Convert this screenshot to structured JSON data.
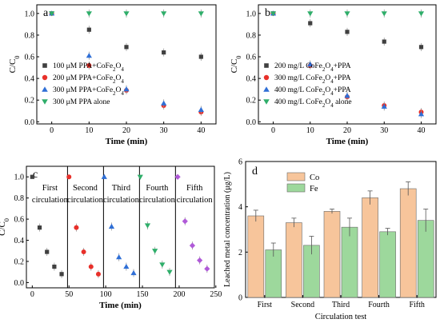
{
  "chart_data": [
    {
      "panel": "a",
      "type": "scatter",
      "xlabel": "Time (min)",
      "ylabel": "C/C0",
      "xlim": [
        -4,
        44
      ],
      "ylim": [
        -0.02,
        1.08
      ],
      "xticks": [
        0,
        10,
        20,
        30,
        40
      ],
      "yticks": [
        0.0,
        0.2,
        0.4,
        0.6,
        0.8,
        1.0
      ],
      "legend_position": "bottom-left",
      "series": [
        {
          "name": "100 μM PPA+CoFe2O4",
          "label": [
            "100 μM PPA+CoFe",
            "2",
            "O",
            "4",
            ""
          ],
          "marker": "square",
          "color": "#404040",
          "x": [
            0,
            10,
            20,
            30,
            40
          ],
          "y": [
            1.0,
            0.85,
            0.69,
            0.64,
            0.6
          ]
        },
        {
          "name": "200 μM PPA+CoFe2O4",
          "label": [
            "200 μM PPA+CoFe",
            "2",
            "O",
            "4",
            ""
          ],
          "marker": "circle",
          "color": "#e8302a",
          "x": [
            0,
            10,
            20,
            30,
            40
          ],
          "y": [
            1.0,
            0.52,
            0.29,
            0.15,
            0.09
          ]
        },
        {
          "name": "300 μM PPA+CoFe2O4",
          "label": [
            "300 μM PPA+CoFe",
            "2",
            "O",
            "4",
            ""
          ],
          "marker": "triangle-up",
          "color": "#2f6fd6",
          "x": [
            0,
            10,
            20,
            30,
            40
          ],
          "y": [
            1.0,
            0.61,
            0.3,
            0.17,
            0.11
          ]
        },
        {
          "name": "300 μM PPA alone",
          "label": [
            "300 μM PPA alone",
            "",
            "",
            "",
            ""
          ],
          "marker": "triangle-down",
          "color": "#2fae6a",
          "x": [
            0,
            10,
            20,
            30,
            40
          ],
          "y": [
            1.0,
            1.0,
            1.0,
            1.0,
            1.0
          ]
        }
      ]
    },
    {
      "panel": "b",
      "type": "scatter",
      "xlabel": "Time (min)",
      "ylabel": "C/C0",
      "xlim": [
        -4,
        44
      ],
      "ylim": [
        -0.02,
        1.08
      ],
      "xticks": [
        0,
        10,
        20,
        30,
        40
      ],
      "yticks": [
        0.0,
        0.2,
        0.4,
        0.6,
        0.8,
        1.0
      ],
      "legend_position": "bottom-left",
      "series": [
        {
          "name": "200 mg/L CoFe2O4+PPA",
          "label": [
            "200 mg/L CoFe",
            "2",
            "O",
            "4",
            "+PPA"
          ],
          "marker": "square",
          "color": "#404040",
          "x": [
            0,
            10,
            20,
            30,
            40
          ],
          "y": [
            1.0,
            0.91,
            0.83,
            0.74,
            0.69
          ]
        },
        {
          "name": "300 mg/L CoFe2O4+PPA",
          "label": [
            "300 mg/L CoFe",
            "2",
            "O",
            "4",
            "+PPA"
          ],
          "marker": "circle",
          "color": "#e8302a",
          "x": [
            0,
            10,
            20,
            30,
            40
          ],
          "y": [
            1.0,
            0.52,
            0.23,
            0.15,
            0.09
          ]
        },
        {
          "name": "400 mg/L CoFe2O4+PPA",
          "label": [
            "400 mg/L CoFe",
            "2",
            "O",
            "4",
            "+PPA"
          ],
          "marker": "triangle-up",
          "color": "#2f6fd6",
          "x": [
            0,
            10,
            20,
            30,
            40
          ],
          "y": [
            1.0,
            0.53,
            0.24,
            0.14,
            0.07
          ]
        },
        {
          "name": "400 mg/L CoFe2O4 alone",
          "label": [
            "400 mg/L CoFe",
            "2",
            "O",
            "4",
            " alone"
          ],
          "marker": "triangle-down",
          "color": "#2fae6a",
          "x": [
            0,
            10,
            20,
            30,
            40
          ],
          "y": [
            1.0,
            1.0,
            1.0,
            1.0,
            1.0
          ]
        }
      ]
    },
    {
      "panel": "c",
      "type": "scatter",
      "xlabel": "Time (min)",
      "ylabel": "C/C0",
      "xlim": [
        -8,
        248
      ],
      "ylim": [
        -0.05,
        1.1
      ],
      "xticks": [
        0,
        50,
        100,
        150,
        200,
        250
      ],
      "yticks": [
        0.0,
        0.2,
        0.4,
        0.6,
        0.8,
        1.0
      ],
      "dividers_x": [
        48,
        97,
        146,
        195
      ],
      "section_labels": [
        {
          "text": "First circulation",
          "x": 24
        },
        {
          "text": "Second circulation",
          "x": 72
        },
        {
          "text": "Third circulation",
          "x": 121
        },
        {
          "text": "Fourth circulation",
          "x": 170
        },
        {
          "text": "Fifth circulation",
          "x": 221
        }
      ],
      "series": [
        {
          "name": "First",
          "marker": "square",
          "color": "#404040",
          "x": [
            0,
            10,
            20,
            30,
            40
          ],
          "y": [
            1.0,
            0.52,
            0.29,
            0.15,
            0.08
          ]
        },
        {
          "name": "Second",
          "marker": "circle",
          "color": "#e8302a",
          "x": [
            50,
            60,
            70,
            80,
            90
          ],
          "y": [
            1.0,
            0.52,
            0.29,
            0.15,
            0.08
          ]
        },
        {
          "name": "Third",
          "marker": "triangle-up",
          "color": "#2f6fd6",
          "x": [
            98,
            108,
            118,
            128,
            138
          ],
          "y": [
            1.0,
            0.53,
            0.24,
            0.15,
            0.09
          ]
        },
        {
          "name": "Fourth",
          "marker": "triangle-down",
          "color": "#2fae6a",
          "x": [
            147,
            157,
            167,
            177,
            187
          ],
          "y": [
            1.0,
            0.54,
            0.3,
            0.17,
            0.1
          ]
        },
        {
          "name": "Fifth",
          "marker": "diamond",
          "color": "#b05ad8",
          "x": [
            198,
            208,
            218,
            228,
            238
          ],
          "y": [
            1.0,
            0.58,
            0.35,
            0.21,
            0.13
          ]
        }
      ]
    },
    {
      "panel": "d",
      "type": "bar",
      "xlabel": "Circulation test",
      "ylabel": "Leached metal concentration (μg/L)",
      "ylim": [
        0,
        6
      ],
      "yticks": [
        0,
        2,
        4,
        6
      ],
      "legend_position": "top-left",
      "categories": [
        "First",
        "Second",
        "Third",
        "Fourth",
        "Fifth"
      ],
      "series": [
        {
          "name": "Co",
          "color": "#f7c59b",
          "values": [
            3.6,
            3.3,
            3.8,
            4.4,
            4.8
          ],
          "errors": [
            0.25,
            0.2,
            0.1,
            0.3,
            0.3
          ]
        },
        {
          "name": "Fe",
          "color": "#9dd89c",
          "values": [
            2.1,
            2.3,
            3.1,
            2.9,
            3.4
          ],
          "errors": [
            0.3,
            0.4,
            0.4,
            0.15,
            0.5
          ]
        }
      ]
    }
  ]
}
